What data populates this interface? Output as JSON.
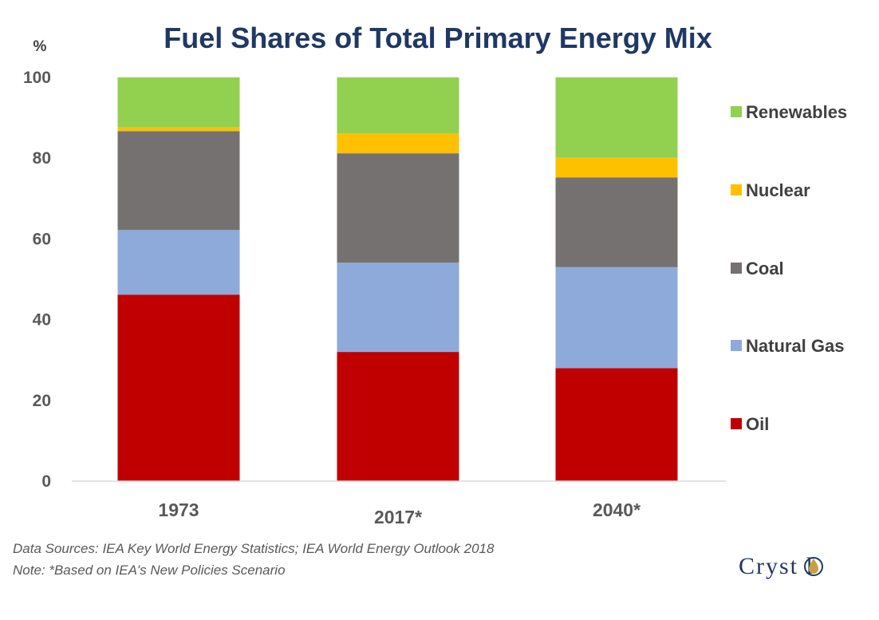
{
  "chart_data": {
    "type": "bar",
    "stacked": true,
    "title": "Fuel Shares of Total Primary Energy Mix",
    "unit_label": "%",
    "categories": [
      "1973",
      "2017*",
      "2040*"
    ],
    "ylim": [
      0,
      100
    ],
    "yticks": [
      0,
      20,
      40,
      60,
      80,
      100
    ],
    "grid": false,
    "legend_position": "right",
    "series": [
      {
        "name": "Oil",
        "color": "#c00000",
        "values": [
          46.2,
          32.0,
          28.0
        ]
      },
      {
        "name": "Natural Gas",
        "color": "#8eaadb",
        "values": [
          16.0,
          22.1,
          25.0
        ]
      },
      {
        "name": "Coal",
        "color": "#767171",
        "values": [
          24.5,
          27.1,
          22.2
        ]
      },
      {
        "name": "Nuclear",
        "color": "#ffc000",
        "values": [
          0.9,
          4.9,
          4.9
        ]
      },
      {
        "name": "Renewables",
        "color": "#92d050",
        "values": [
          12.4,
          13.9,
          19.9
        ]
      }
    ]
  },
  "notes": {
    "line1": "Data Sources: IEA Key World Energy Statistics; IEA World Energy Outlook 2018",
    "line2": "Note: *Based on IEA's New Policies Scenario"
  },
  "logo": {
    "text": "Cryst l"
  }
}
